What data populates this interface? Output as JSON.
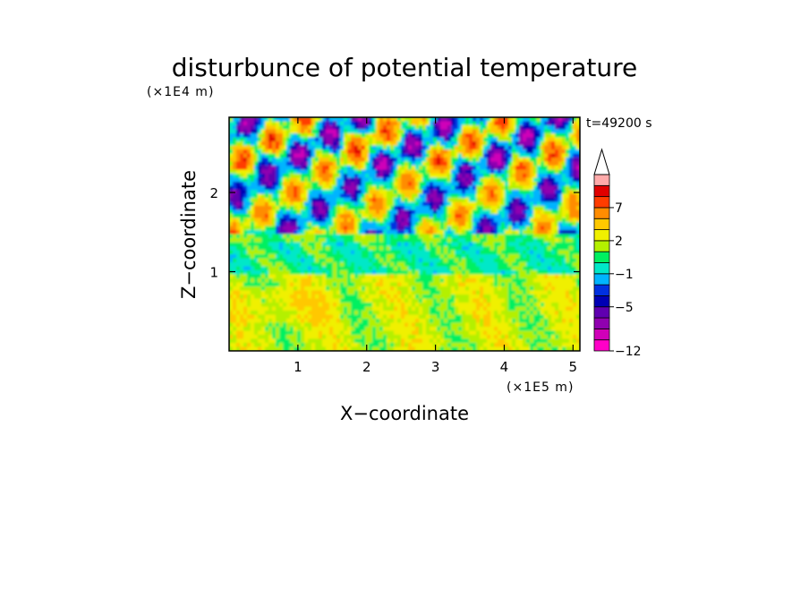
{
  "chart_data": {
    "type": "heatmap",
    "title": "disturbunce of potential temperature",
    "xlabel": "X−coordinate",
    "ylabel": "Z−coordinate",
    "x_scale_label": "(×1E5 m)",
    "y_scale_label": "(×1E4 m)",
    "time_label": "t=49200 s",
    "xlim": [
      0,
      5.1
    ],
    "ylim": [
      0,
      2.95
    ],
    "x_ticks": [
      1,
      2,
      3,
      4,
      5
    ],
    "x_tick_labels": [
      "1",
      "2",
      "3",
      "4",
      "5"
    ],
    "y_ticks": [
      1,
      2
    ],
    "y_tick_labels": [
      "1",
      "2"
    ],
    "colorbar": {
      "levels": [
        -12,
        -10,
        -8,
        -6,
        -5,
        -4,
        -3,
        -1,
        0,
        1,
        2,
        3,
        5,
        7,
        9,
        11
      ],
      "tick_labels": [
        {
          "value": -12,
          "label": "−12"
        },
        {
          "value": -5,
          "label": "−5"
        },
        {
          "value": -1,
          "label": "−1"
        },
        {
          "value": 2,
          "label": "2"
        },
        {
          "value": 7,
          "label": "7"
        }
      ],
      "colors": [
        "#ff00c8",
        "#d000b8",
        "#9000b0",
        "#6000b0",
        "#0000b4",
        "#0030e0",
        "#00b4ff",
        "#00e8c8",
        "#00f060",
        "#b4f000",
        "#f0f000",
        "#ffc800",
        "#ff8c00",
        "#ff3c00",
        "#e00000",
        "#ffaaaa"
      ],
      "extend": "max"
    },
    "bands": [
      {
        "z_range": [
          0,
          0.95
        ],
        "dominant_value": 2,
        "description_level": "yellow"
      },
      {
        "z_range": [
          0.95,
          1.5
        ],
        "dominant_value": 0,
        "description_level": "green"
      },
      {
        "z_range": [
          1.5,
          2.95
        ],
        "dominant_value": 3,
        "description_level": "mixed"
      }
    ]
  }
}
